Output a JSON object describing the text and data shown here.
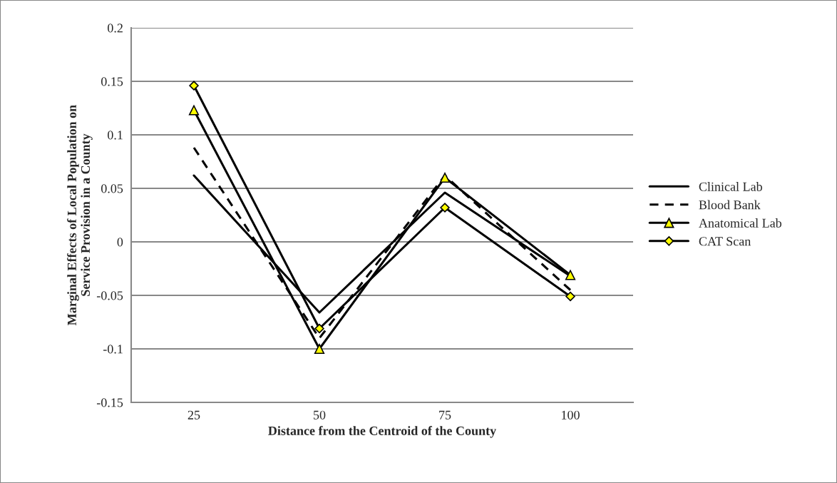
{
  "chart_data": {
    "type": "line",
    "xlabel": "Distance from the Centroid of the County",
    "ylabel": "Marginal Effects of Local Population on Service Provision in a County",
    "categories": [
      "25",
      "50",
      "75",
      "100"
    ],
    "series": [
      {
        "name": "Clinical Lab",
        "color": "#000000",
        "values": [
          0.062,
          -0.066,
          0.046,
          -0.032
        ],
        "line_style": "solid",
        "marker": "none"
      },
      {
        "name": "Blood Bank",
        "color": "#000000",
        "values": [
          0.088,
          -0.09,
          0.062,
          -0.045
        ],
        "line_style": "dashed",
        "marker": "none"
      },
      {
        "name": "Anatomical Lab",
        "color": "#000000",
        "values": [
          0.123,
          -0.1,
          0.06,
          -0.031
        ],
        "line_style": "solid",
        "marker": "triangle"
      },
      {
        "name": "CAT Scan",
        "color": "#000000",
        "values": [
          0.146,
          -0.081,
          0.032,
          -0.051
        ],
        "line_style": "solid",
        "marker": "diamond"
      }
    ],
    "ylim": [
      -0.15,
      0.2
    ],
    "yticks": [
      -0.15,
      -0.1,
      -0.05,
      0,
      0.05,
      0.1,
      0.15,
      0.2
    ],
    "grid": "y",
    "legend": "right"
  }
}
